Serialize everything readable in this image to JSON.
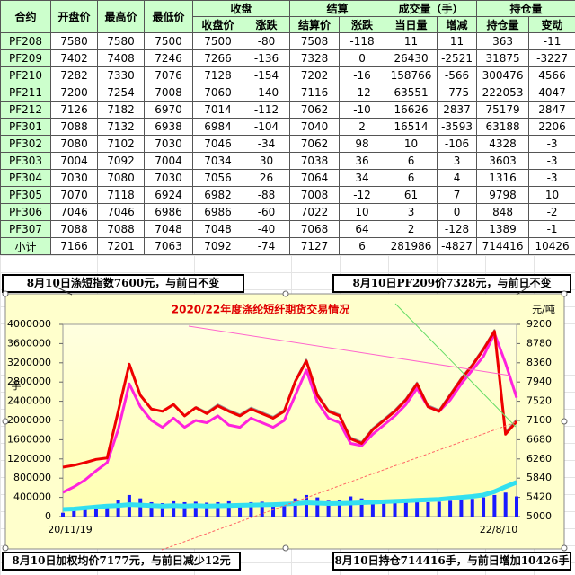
{
  "table": {
    "header_top": [
      "合约",
      "开盘价",
      "最高价",
      "最低价",
      "收盘",
      "结算",
      "成交量（手）",
      "持仓量"
    ],
    "header_sub": [
      "收盘价",
      "涨跌",
      "结算价",
      "涨跌",
      "当日量",
      "增减",
      "持仓量",
      "变动"
    ],
    "rows": [
      [
        "PF208",
        7580,
        7580,
        7500,
        7500,
        -80,
        7508,
        -118,
        11,
        11,
        363,
        -11
      ],
      [
        "PF209",
        7402,
        7408,
        7246,
        7266,
        -136,
        7328,
        0,
        26430,
        -2521,
        31875,
        -3227
      ],
      [
        "PF210",
        7282,
        7330,
        7076,
        7128,
        -154,
        7202,
        -16,
        158766,
        -566,
        300476,
        4566
      ],
      [
        "PF211",
        7200,
        7254,
        7008,
        7060,
        -140,
        7116,
        -12,
        63551,
        -775,
        222053,
        4047
      ],
      [
        "PF212",
        7126,
        7182,
        6970,
        7014,
        -112,
        7062,
        -10,
        16626,
        2837,
        75179,
        2847
      ],
      [
        "PF301",
        7088,
        7132,
        6938,
        6984,
        -104,
        7040,
        2,
        16514,
        -3593,
        63188,
        2206
      ],
      [
        "PF302",
        7080,
        7102,
        7030,
        7046,
        -34,
        7062,
        98,
        10,
        -106,
        4328,
        -3
      ],
      [
        "PF303",
        7004,
        7092,
        7004,
        7034,
        30,
        7038,
        36,
        6,
        3,
        3603,
        -3
      ],
      [
        "PF304",
        7030,
        7080,
        7030,
        7056,
        26,
        7064,
        34,
        6,
        4,
        1316,
        -3
      ],
      [
        "PF305",
        7070,
        7118,
        6924,
        6982,
        -88,
        7008,
        -12,
        61,
        7,
        9798,
        10
      ],
      [
        "PF306",
        7046,
        7046,
        6986,
        6986,
        -60,
        7022,
        10,
        3,
        0,
        848,
        -2
      ],
      [
        "PF307",
        7088,
        7088,
        7048,
        7048,
        -40,
        7068,
        64,
        2,
        -128,
        1389,
        -1
      ],
      [
        "小计",
        7166,
        7201,
        7063,
        7092,
        -74,
        7127,
        6,
        281986,
        -4827,
        714416,
        10426
      ]
    ]
  },
  "annotations": [
    "8月10日涤短指数7600元，与前日不变",
    "8月10日PF209价7328元，与前日不变",
    "8月10日加权均价7177元，与前日减少12元",
    "8月10日持仓714416手，与前日增加10426手"
  ],
  "chart_data": {
    "type": "combo",
    "title": "2020/22年度涤纶短纤期货交易情况",
    "y_label": "手",
    "y2_label": "元/吨",
    "categories": [
      "20/11/19",
      null,
      null,
      null,
      null,
      null,
      null,
      null,
      null,
      null,
      null,
      null,
      null,
      null,
      null,
      null,
      null,
      null,
      null,
      null,
      null,
      null,
      null,
      null,
      null,
      null,
      null,
      null,
      null,
      null,
      null,
      null,
      null,
      null,
      null,
      null,
      null,
      null,
      null,
      null,
      null,
      "22/8/10"
    ],
    "ylim": [
      0,
      4000000
    ],
    "yticks": [
      0,
      400000,
      800000,
      1200000,
      1600000,
      2000000,
      2400000,
      2800000,
      3200000,
      3600000,
      4000000
    ],
    "y2lim": [
      5000,
      9200
    ],
    "y2ticks": [
      5000,
      5420,
      5840,
      6260,
      6680,
      7100,
      7520,
      7940,
      8360,
      8780,
      9200
    ],
    "series": [
      {
        "type": "bar",
        "color": "#1a1aff",
        "values": [
          80000,
          120000,
          150000,
          180000,
          200000,
          350000,
          450000,
          380000,
          300000,
          280000,
          320000,
          300000,
          310000,
          290000,
          300000,
          320000,
          280000,
          300000,
          310000,
          290000,
          300000,
          380000,
          450000,
          400000,
          330000,
          350000,
          420000,
          380000,
          350000,
          330000,
          320000,
          340000,
          380000,
          300000,
          310000,
          330000,
          350000,
          370000,
          400000,
          450000,
          500000,
          420000
        ]
      },
      {
        "type": "line",
        "color": "#33e0f0",
        "width": 5,
        "values": [
          150000,
          160000,
          180000,
          200000,
          220000,
          230000,
          250000,
          240000,
          230000,
          220000,
          230000,
          220000,
          230000,
          220000,
          225000,
          230000,
          235000,
          240000,
          245000,
          250000,
          260000,
          270000,
          290000,
          280000,
          270000,
          275000,
          280000,
          290000,
          300000,
          310000,
          320000,
          330000,
          340000,
          350000,
          360000,
          380000,
          400000,
          420000,
          450000,
          520000,
          620000,
          714416
        ]
      },
      {
        "type": "line",
        "axis": "y2",
        "color": "#999999",
        "width": 2,
        "values": [
          null,
          null,
          null,
          null,
          null,
          null,
          null,
          null,
          null,
          null,
          null,
          null,
          7400,
          7280,
          7450,
          7330,
          7230,
          7380,
          7280,
          7180,
          7330,
          7980,
          8430,
          7680,
          7330,
          7230,
          6730,
          6630,
          6930,
          7130,
          7330,
          7580,
          7930,
          7430,
          7330,
          7680,
          8030,
          8330,
          8680,
          9080,
          6850,
          7120
        ]
      },
      {
        "type": "line",
        "axis": "y2",
        "color": "#ff22dd",
        "width": 3,
        "values": [
          5530,
          5650,
          5800,
          6000,
          6180,
          6900,
          7900,
          7400,
          7100,
          6950,
          7150,
          6950,
          7100,
          7050,
          7200,
          7000,
          6950,
          7150,
          7050,
          6950,
          7100,
          7650,
          8200,
          7500,
          7150,
          7050,
          6600,
          6550,
          6800,
          7000,
          7200,
          7450,
          7800,
          7400,
          7300,
          7550,
          7900,
          8200,
          8500,
          9000,
          8350,
          7600
        ]
      },
      {
        "type": "line",
        "axis": "y2",
        "color": "#ee0000",
        "width": 3,
        "values": [
          6080,
          6120,
          6180,
          6250,
          6280,
          7300,
          8330,
          7650,
          7350,
          7300,
          7450,
          7200,
          7380,
          7250,
          7420,
          7300,
          7200,
          7350,
          7250,
          7150,
          7300,
          7950,
          8400,
          7650,
          7300,
          7200,
          6700,
          6600,
          6900,
          7100,
          7300,
          7550,
          7900,
          7400,
          7300,
          7650,
          8000,
          8300,
          8650,
          9050,
          6800,
          7080
        ]
      }
    ]
  }
}
